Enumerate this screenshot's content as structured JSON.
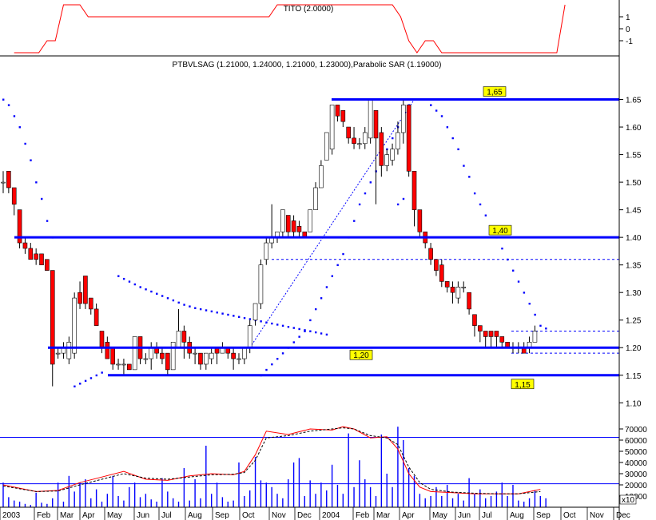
{
  "chart_data": [
    {
      "type": "line",
      "title": "TITO (2.0000)",
      "yticks": [
        "1",
        "0",
        "-1"
      ],
      "ylim": [
        -1.6,
        1.6
      ],
      "series": [
        {
          "name": "TITO",
          "color": "#ff0000",
          "x": [
            0,
            3,
            4,
            5,
            6,
            7,
            8,
            9,
            31,
            32,
            33,
            34,
            35,
            46,
            47,
            48,
            49,
            50,
            51,
            52,
            66,
            67
          ],
          "values": [
            -2,
            -2,
            -1,
            -1,
            2,
            2,
            2,
            1,
            1,
            2,
            2,
            2,
            2,
            2,
            1,
            -1,
            -2,
            -1,
            -1,
            -2,
            -2,
            2
          ]
        }
      ]
    },
    {
      "type": "candlestick",
      "title": "PTBVLSAG (1.21000, 1.24000, 1.21000, 1.23000),Parabolic SAR (1.19000)",
      "ylim": [
        1.07,
        1.7
      ],
      "yticks": [
        "1.65",
        "1.60",
        "1.55",
        "1.50",
        "1.45",
        "1.40",
        "1.35",
        "1.30",
        "1.25",
        "1.20",
        "1.15",
        "1.10"
      ],
      "horizontal_lines": [
        {
          "value": 1.65,
          "label": "1,65"
        },
        {
          "value": 1.4,
          "label": "1,40"
        },
        {
          "value": 1.2,
          "label": "1,20"
        },
        {
          "value": 1.15,
          "label": "1,15"
        }
      ],
      "dashed_lines": [
        1.36,
        1.23,
        1.19
      ],
      "candles": [
        {
          "o": 1.5,
          "h": 1.52,
          "l": 1.48,
          "c": 1.5
        },
        {
          "o": 1.52,
          "h": 1.52,
          "l": 1.48,
          "c": 1.49
        },
        {
          "o": 1.49,
          "h": 1.49,
          "l": 1.44,
          "c": 1.46
        },
        {
          "o": 1.45,
          "h": 1.45,
          "l": 1.38,
          "c": 1.39
        },
        {
          "o": 1.39,
          "h": 1.4,
          "l": 1.37,
          "c": 1.38
        },
        {
          "o": 1.38,
          "h": 1.39,
          "l": 1.36,
          "c": 1.36
        },
        {
          "o": 1.37,
          "h": 1.38,
          "l": 1.35,
          "c": 1.36
        },
        {
          "o": 1.37,
          "h": 1.37,
          "l": 1.35,
          "c": 1.35
        },
        {
          "o": 1.36,
          "h": 1.36,
          "l": 1.34,
          "c": 1.34
        },
        {
          "o": 1.34,
          "h": 1.34,
          "l": 1.13,
          "c": 1.17
        },
        {
          "o": 1.19,
          "h": 1.2,
          "l": 1.18,
          "c": 1.19
        },
        {
          "o": 1.19,
          "h": 1.21,
          "l": 1.18,
          "c": 1.2
        },
        {
          "o": 1.18,
          "h": 1.22,
          "l": 1.17,
          "c": 1.21
        },
        {
          "o": 1.19,
          "h": 1.3,
          "l": 1.18,
          "c": 1.29
        },
        {
          "o": 1.3,
          "h": 1.32,
          "l": 1.27,
          "c": 1.28
        },
        {
          "o": 1.33,
          "h": 1.33,
          "l": 1.27,
          "c": 1.28
        },
        {
          "o": 1.29,
          "h": 1.29,
          "l": 1.26,
          "c": 1.27
        },
        {
          "o": 1.27,
          "h": 1.28,
          "l": 1.24,
          "c": 1.24
        },
        {
          "o": 1.23,
          "h": 1.23,
          "l": 1.19,
          "c": 1.2
        },
        {
          "o": 1.21,
          "h": 1.22,
          "l": 1.18,
          "c": 1.18
        },
        {
          "o": 1.2,
          "h": 1.2,
          "l": 1.16,
          "c": 1.17
        },
        {
          "o": 1.17,
          "h": 1.18,
          "l": 1.16,
          "c": 1.17
        },
        {
          "o": 1.17,
          "h": 1.18,
          "l": 1.15,
          "c": 1.17
        },
        {
          "o": 1.17,
          "h": 1.17,
          "l": 1.16,
          "c": 1.16
        },
        {
          "o": 1.16,
          "h": 1.22,
          "l": 1.16,
          "c": 1.22
        },
        {
          "o": 1.22,
          "h": 1.22,
          "l": 1.17,
          "c": 1.18
        },
        {
          "o": 1.18,
          "h": 1.19,
          "l": 1.17,
          "c": 1.18
        },
        {
          "o": 1.18,
          "h": 1.21,
          "l": 1.16,
          "c": 1.2
        },
        {
          "o": 1.2,
          "h": 1.21,
          "l": 1.18,
          "c": 1.19
        },
        {
          "o": 1.19,
          "h": 1.2,
          "l": 1.17,
          "c": 1.18
        },
        {
          "o": 1.19,
          "h": 1.19,
          "l": 1.15,
          "c": 1.16
        },
        {
          "o": 1.16,
          "h": 1.21,
          "l": 1.16,
          "c": 1.21
        },
        {
          "o": 1.2,
          "h": 1.27,
          "l": 1.2,
          "c": 1.23
        },
        {
          "o": 1.23,
          "h": 1.24,
          "l": 1.18,
          "c": 1.21
        },
        {
          "o": 1.21,
          "h": 1.22,
          "l": 1.18,
          "c": 1.19
        },
        {
          "o": 1.19,
          "h": 1.2,
          "l": 1.17,
          "c": 1.19
        },
        {
          "o": 1.19,
          "h": 1.19,
          "l": 1.16,
          "c": 1.17
        },
        {
          "o": 1.17,
          "h": 1.19,
          "l": 1.16,
          "c": 1.19
        },
        {
          "o": 1.18,
          "h": 1.2,
          "l": 1.17,
          "c": 1.19
        },
        {
          "o": 1.2,
          "h": 1.2,
          "l": 1.17,
          "c": 1.19
        },
        {
          "o": 1.19,
          "h": 1.21,
          "l": 1.19,
          "c": 1.2
        },
        {
          "o": 1.2,
          "h": 1.2,
          "l": 1.18,
          "c": 1.19
        },
        {
          "o": 1.19,
          "h": 1.2,
          "l": 1.16,
          "c": 1.18
        },
        {
          "o": 1.18,
          "h": 1.19,
          "l": 1.17,
          "c": 1.18
        },
        {
          "o": 1.18,
          "h": 1.2,
          "l": 1.17,
          "c": 1.2
        },
        {
          "o": 1.2,
          "h": 1.25,
          "l": 1.19,
          "c": 1.24
        },
        {
          "o": 1.25,
          "h": 1.28,
          "l": 1.24,
          "c": 1.28
        },
        {
          "o": 1.28,
          "h": 1.36,
          "l": 1.27,
          "c": 1.35
        },
        {
          "o": 1.36,
          "h": 1.4,
          "l": 1.35,
          "c": 1.39
        },
        {
          "o": 1.39,
          "h": 1.46,
          "l": 1.38,
          "c": 1.4
        },
        {
          "o": 1.4,
          "h": 1.41,
          "l": 1.39,
          "c": 1.41
        },
        {
          "o": 1.41,
          "h": 1.45,
          "l": 1.4,
          "c": 1.45
        },
        {
          "o": 1.44,
          "h": 1.44,
          "l": 1.4,
          "c": 1.41
        },
        {
          "o": 1.43,
          "h": 1.44,
          "l": 1.4,
          "c": 1.41
        },
        {
          "o": 1.42,
          "h": 1.43,
          "l": 1.4,
          "c": 1.41
        },
        {
          "o": 1.41,
          "h": 1.41,
          "l": 1.4,
          "c": 1.4
        },
        {
          "o": 1.41,
          "h": 1.45,
          "l": 1.41,
          "c": 1.45
        },
        {
          "o": 1.45,
          "h": 1.5,
          "l": 1.45,
          "c": 1.49
        },
        {
          "o": 1.49,
          "h": 1.54,
          "l": 1.49,
          "c": 1.53
        },
        {
          "o": 1.54,
          "h": 1.59,
          "l": 1.54,
          "c": 1.59
        },
        {
          "o": 1.56,
          "h": 1.64,
          "l": 1.55,
          "c": 1.64
        },
        {
          "o": 1.64,
          "h": 1.64,
          "l": 1.61,
          "c": 1.62
        },
        {
          "o": 1.63,
          "h": 1.63,
          "l": 1.6,
          "c": 1.61
        },
        {
          "o": 1.6,
          "h": 1.6,
          "l": 1.57,
          "c": 1.58
        },
        {
          "o": 1.58,
          "h": 1.6,
          "l": 1.56,
          "c": 1.57
        },
        {
          "o": 1.57,
          "h": 1.58,
          "l": 1.56,
          "c": 1.57
        },
        {
          "o": 1.57,
          "h": 1.6,
          "l": 1.56,
          "c": 1.59
        },
        {
          "o": 1.58,
          "h": 1.65,
          "l": 1.57,
          "c": 1.65
        },
        {
          "o": 1.63,
          "h": 1.63,
          "l": 1.46,
          "c": 1.58
        },
        {
          "o": 1.59,
          "h": 1.6,
          "l": 1.51,
          "c": 1.53
        },
        {
          "o": 1.53,
          "h": 1.56,
          "l": 1.52,
          "c": 1.55
        },
        {
          "o": 1.54,
          "h": 1.57,
          "l": 1.53,
          "c": 1.56
        },
        {
          "o": 1.56,
          "h": 1.61,
          "l": 1.55,
          "c": 1.59
        },
        {
          "o": 1.59,
          "h": 1.65,
          "l": 1.57,
          "c": 1.64
        },
        {
          "o": 1.64,
          "h": 1.64,
          "l": 1.51,
          "c": 1.52
        },
        {
          "o": 1.52,
          "h": 1.52,
          "l": 1.42,
          "c": 1.45
        },
        {
          "o": 1.45,
          "h": 1.45,
          "l": 1.4,
          "c": 1.41
        },
        {
          "o": 1.41,
          "h": 1.41,
          "l": 1.38,
          "c": 1.39
        },
        {
          "o": 1.38,
          "h": 1.39,
          "l": 1.35,
          "c": 1.36
        },
        {
          "o": 1.36,
          "h": 1.36,
          "l": 1.33,
          "c": 1.34
        },
        {
          "o": 1.35,
          "h": 1.36,
          "l": 1.31,
          "c": 1.32
        },
        {
          "o": 1.32,
          "h": 1.32,
          "l": 1.3,
          "c": 1.31
        },
        {
          "o": 1.31,
          "h": 1.32,
          "l": 1.28,
          "c": 1.3
        },
        {
          "o": 1.29,
          "h": 1.32,
          "l": 1.28,
          "c": 1.31
        },
        {
          "o": 1.31,
          "h": 1.32,
          "l": 1.3,
          "c": 1.31
        },
        {
          "o": 1.3,
          "h": 1.3,
          "l": 1.26,
          "c": 1.27
        },
        {
          "o": 1.26,
          "h": 1.26,
          "l": 1.22,
          "c": 1.24
        },
        {
          "o": 1.24,
          "h": 1.24,
          "l": 1.21,
          "c": 1.23
        },
        {
          "o": 1.23,
          "h": 1.23,
          "l": 1.2,
          "c": 1.22
        },
        {
          "o": 1.23,
          "h": 1.23,
          "l": 1.2,
          "c": 1.22
        },
        {
          "o": 1.23,
          "h": 1.23,
          "l": 1.2,
          "c": 1.22
        },
        {
          "o": 1.22,
          "h": 1.22,
          "l": 1.2,
          "c": 1.21
        },
        {
          "o": 1.21,
          "h": 1.21,
          "l": 1.2,
          "c": 1.2
        },
        {
          "o": 1.2,
          "h": 1.21,
          "l": 1.19,
          "c": 1.2
        },
        {
          "o": 1.2,
          "h": 1.21,
          "l": 1.19,
          "c": 1.2
        },
        {
          "o": 1.2,
          "h": 1.21,
          "l": 1.19,
          "c": 1.19
        },
        {
          "o": 1.2,
          "h": 1.22,
          "l": 1.19,
          "c": 1.21
        },
        {
          "o": 1.21,
          "h": 1.24,
          "l": 1.21,
          "c": 1.23
        }
      ],
      "parabolic_sar_segments": [
        {
          "values": [
            1.65,
            1.64,
            1.62,
            1.6,
            1.57,
            1.54,
            1.5,
            1.47,
            1.43,
            1.4
          ]
        },
        {
          "values": [
            1.13,
            1.135,
            1.14,
            1.145,
            1.15,
            1.155
          ]
        },
        {
          "values": [
            1.33,
            1.325,
            1.32,
            1.315,
            1.31,
            1.306,
            1.302,
            1.298,
            1.294,
            1.29,
            1.286,
            1.282,
            1.278,
            1.275,
            1.272,
            1.27,
            1.268,
            1.266,
            1.264,
            1.262,
            1.26,
            1.258,
            1.256,
            1.254,
            1.252,
            1.25,
            1.248,
            1.246,
            1.244,
            1.242,
            1.24,
            1.238,
            1.236,
            1.234,
            1.232,
            1.23,
            1.228,
            1.226,
            1.224
          ]
        },
        {
          "values": [
            1.15,
            1.16,
            1.17,
            1.18,
            1.19,
            1.2,
            1.21,
            1.22,
            1.23,
            1.25,
            1.27,
            1.29,
            1.31,
            1.33,
            1.35,
            1.37,
            1.4,
            1.43,
            1.46,
            1.48,
            1.5,
            1.52,
            1.54,
            1.56,
            1.58,
            1.6,
            1.62,
            1.64,
            1.65
          ]
        },
        {
          "values": [
            1.46,
            1.47,
            1.65,
            1.65,
            1.65,
            1.65,
            1.64,
            1.63,
            1.62,
            1.6,
            1.58,
            1.56,
            1.53,
            1.51,
            1.48,
            1.46,
            1.44,
            1.42,
            1.4,
            1.38,
            1.36,
            1.34,
            1.32,
            1.3,
            1.28,
            1.26,
            1.24,
            1.235
          ]
        }
      ],
      "trendline": {
        "from": [
          1.21,
          1.2
        ],
        "to": [
          1.68,
          1.65
        ]
      }
    },
    {
      "type": "bar+line",
      "ylim": [
        0,
        75000
      ],
      "yticks": [
        "70000",
        "60000",
        "50000",
        "40000",
        "30000",
        "20000",
        "10000"
      ],
      "reference_lines": [
        62500,
        21000
      ],
      "x_unit_label": "x10",
      "x_labels": [
        "2003",
        "Feb",
        "Mar",
        "Apr",
        "May",
        "Jun",
        "Jul",
        "Aug",
        "Sep",
        "Oct",
        "Nov",
        "Dec",
        "2004",
        "Feb",
        "Mar",
        "Apr",
        "May",
        "Jun",
        "Jul",
        "Aug",
        "Sep",
        "Oct",
        "Nov",
        "Dec"
      ],
      "volume": [
        22000,
        9000,
        6000,
        5000,
        3000,
        2000,
        13000,
        4000,
        3000,
        8000,
        22000,
        5000,
        28000,
        14000,
        22000,
        25000,
        8000,
        16000,
        5000,
        12000,
        28000,
        10000,
        6000,
        18000,
        22000,
        9000,
        12000,
        7000,
        5000,
        26000,
        14000,
        8000,
        5000,
        35000,
        6000,
        25000,
        8000,
        55000,
        12000,
        22000,
        9000,
        5000,
        6000,
        40000,
        10000,
        15000,
        45000,
        24000,
        22000,
        18000,
        12000,
        8000,
        25000,
        40000,
        44000,
        10000,
        24000,
        12000,
        22000,
        15000,
        38000,
        20000,
        12000,
        66000,
        18000,
        42000,
        25000,
        18000,
        10000,
        65000,
        30000,
        18000,
        72000,
        60000,
        35000,
        28000,
        12000,
        8000,
        10000,
        18000,
        10000,
        20000,
        8000,
        12000,
        6000,
        26000,
        12000,
        16000,
        8000,
        10000,
        14000,
        22000,
        10000,
        20000,
        6000,
        5000,
        8000,
        15000,
        10000,
        8000
      ],
      "series": [
        {
          "color": "#ff0000",
          "x": [
            0,
            6,
            10,
            14,
            18,
            22,
            26,
            30,
            34,
            38,
            42,
            44,
            46,
            48,
            52,
            56,
            60,
            62,
            64,
            67,
            70,
            72,
            74,
            76,
            78,
            82,
            86,
            90,
            94,
            98
          ],
          "values": [
            20000,
            14000,
            15000,
            22000,
            27000,
            32000,
            25000,
            24000,
            28000,
            30000,
            29000,
            32000,
            47000,
            68000,
            65000,
            70000,
            69000,
            72000,
            70000,
            62000,
            63000,
            52000,
            30000,
            18000,
            14000,
            13000,
            12000,
            12000,
            12000,
            16000
          ]
        },
        {
          "color": "#000000",
          "dashed": true,
          "x": [
            0,
            6,
            10,
            14,
            18,
            22,
            26,
            30,
            34,
            38,
            42,
            44,
            46,
            48,
            52,
            56,
            60,
            62,
            64,
            67,
            70,
            72,
            74,
            76,
            78,
            82,
            86,
            90,
            94,
            98
          ],
          "values": [
            19000,
            14000,
            14500,
            20000,
            25000,
            30000,
            26000,
            25000,
            27000,
            29000,
            29500,
            31000,
            42000,
            62000,
            64000,
            68000,
            70000,
            71000,
            70000,
            64000,
            62000,
            56000,
            36000,
            22000,
            16000,
            13500,
            12500,
            12000,
            12000,
            14000
          ]
        }
      ]
    }
  ],
  "colors": {
    "bull_candle": "#ffffff",
    "bear_candle": "#ff0000",
    "level_line": "#0000ff",
    "volume_bar": "#0000ff",
    "sar_dot": "#0000ff"
  }
}
